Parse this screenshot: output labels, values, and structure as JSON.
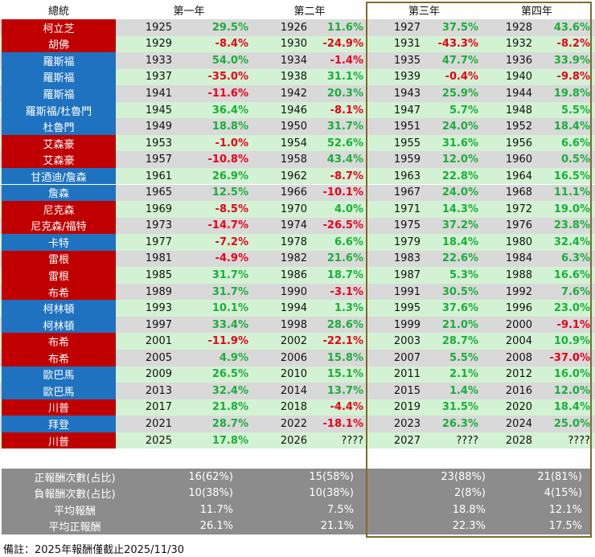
{
  "header": {
    "president": "總統",
    "year1": "第一年",
    "year2": "第二年",
    "year3": "第三年",
    "year4": "第四年"
  },
  "colors": {
    "republican": "#c00000",
    "democrat": "#1f72c0",
    "positive": "#1aaf3a",
    "negative": "#e8001c",
    "row_green": "#d3f2d3",
    "row_gray": "#d9d9d9",
    "summary_bg": "#8c8c8c",
    "frame": "#7f6a2e"
  },
  "rows": [
    {
      "president": "柯立芝",
      "party": "R",
      "bg": "gray",
      "y1": "1925",
      "r1": "29.5%",
      "y2": "1926",
      "r2": "11.6%",
      "y3": "1927",
      "r3": "37.5%",
      "y4": "1928",
      "r4": "43.6%"
    },
    {
      "president": "胡佛",
      "party": "R",
      "bg": "green",
      "y1": "1929",
      "r1": "-8.4%",
      "y2": "1930",
      "r2": "-24.9%",
      "y3": "1931",
      "r3": "-43.3%",
      "y4": "1932",
      "r4": "-8.2%"
    },
    {
      "president": "羅斯福",
      "party": "D",
      "bg": "gray",
      "y1": "1933",
      "r1": "54.0%",
      "y2": "1934",
      "r2": "-1.4%",
      "y3": "1935",
      "r3": "47.7%",
      "y4": "1936",
      "r4": "33.9%"
    },
    {
      "president": "羅斯福",
      "party": "D",
      "bg": "green",
      "y1": "1937",
      "r1": "-35.0%",
      "y2": "1938",
      "r2": "31.1%",
      "y3": "1939",
      "r3": "-0.4%",
      "y4": "1940",
      "r4": "-9.8%"
    },
    {
      "president": "羅斯福",
      "party": "D",
      "bg": "gray",
      "y1": "1941",
      "r1": "-11.6%",
      "y2": "1942",
      "r2": "20.3%",
      "y3": "1943",
      "r3": "25.9%",
      "y4": "1944",
      "r4": "19.8%"
    },
    {
      "president": "羅斯福/杜魯門",
      "party": "D",
      "bg": "green",
      "y1": "1945",
      "r1": "36.4%",
      "y2": "1946",
      "r2": "-8.1%",
      "y3": "1947",
      "r3": "5.7%",
      "y4": "1948",
      "r4": "5.5%"
    },
    {
      "president": "杜魯門",
      "party": "D",
      "bg": "gray",
      "y1": "1949",
      "r1": "18.8%",
      "y2": "1950",
      "r2": "31.7%",
      "y3": "1951",
      "r3": "24.0%",
      "y4": "1952",
      "r4": "18.4%"
    },
    {
      "president": "艾森豪",
      "party": "R",
      "bg": "green",
      "y1": "1953",
      "r1": "-1.0%",
      "y2": "1954",
      "r2": "52.6%",
      "y3": "1955",
      "r3": "31.6%",
      "y4": "1956",
      "r4": "6.6%"
    },
    {
      "president": "艾森豪",
      "party": "R",
      "bg": "gray",
      "y1": "1957",
      "r1": "-10.8%",
      "y2": "1958",
      "r2": "43.4%",
      "y3": "1959",
      "r3": "12.0%",
      "y4": "1960",
      "r4": "0.5%"
    },
    {
      "president": "甘迺迪/詹森",
      "party": "D",
      "bg": "green",
      "y1": "1961",
      "r1": "26.9%",
      "y2": "1962",
      "r2": "-8.7%",
      "y3": "1963",
      "r3": "22.8%",
      "y4": "1964",
      "r4": "16.5%"
    },
    {
      "president": "詹森",
      "party": "D",
      "bg": "gray",
      "y1": "1965",
      "r1": "12.5%",
      "y2": "1966",
      "r2": "-10.1%",
      "y3": "1967",
      "r3": "24.0%",
      "y4": "1968",
      "r4": "11.1%"
    },
    {
      "president": "尼克森",
      "party": "R",
      "bg": "green",
      "y1": "1969",
      "r1": "-8.5%",
      "y2": "1970",
      "r2": "4.0%",
      "y3": "1971",
      "r3": "14.3%",
      "y4": "1972",
      "r4": "19.0%"
    },
    {
      "president": "尼克森/福特",
      "party": "R",
      "bg": "gray",
      "y1": "1973",
      "r1": "-14.7%",
      "y2": "1974",
      "r2": "-26.5%",
      "y3": "1975",
      "r3": "37.2%",
      "y4": "1976",
      "r4": "23.8%"
    },
    {
      "president": "卡特",
      "party": "D",
      "bg": "green",
      "y1": "1977",
      "r1": "-7.2%",
      "y2": "1978",
      "r2": "6.6%",
      "y3": "1979",
      "r3": "18.4%",
      "y4": "1980",
      "r4": "32.4%"
    },
    {
      "president": "雷根",
      "party": "R",
      "bg": "gray",
      "y1": "1981",
      "r1": "-4.9%",
      "y2": "1982",
      "r2": "21.6%",
      "y3": "1983",
      "r3": "22.6%",
      "y4": "1984",
      "r4": "6.3%"
    },
    {
      "president": "雷根",
      "party": "R",
      "bg": "green",
      "y1": "1985",
      "r1": "31.7%",
      "y2": "1986",
      "r2": "18.7%",
      "y3": "1987",
      "r3": "5.3%",
      "y4": "1988",
      "r4": "16.6%"
    },
    {
      "president": "布希",
      "party": "R",
      "bg": "gray",
      "y1": "1989",
      "r1": "31.7%",
      "y2": "1990",
      "r2": "-3.1%",
      "y3": "1991",
      "r3": "30.5%",
      "y4": "1992",
      "r4": "7.6%"
    },
    {
      "president": "柯林頓",
      "party": "D",
      "bg": "green",
      "y1": "1993",
      "r1": "10.1%",
      "y2": "1994",
      "r2": "1.3%",
      "y3": "1995",
      "r3": "37.6%",
      "y4": "1996",
      "r4": "23.0%"
    },
    {
      "president": "柯林頓",
      "party": "D",
      "bg": "gray",
      "y1": "1997",
      "r1": "33.4%",
      "y2": "1998",
      "r2": "28.6%",
      "y3": "1999",
      "r3": "21.0%",
      "y4": "2000",
      "r4": "-9.1%"
    },
    {
      "president": "布希",
      "party": "R",
      "bg": "green",
      "y1": "2001",
      "r1": "-11.9%",
      "y2": "2002",
      "r2": "-22.1%",
      "y3": "2003",
      "r3": "28.7%",
      "y4": "2004",
      "r4": "10.9%"
    },
    {
      "president": "布希",
      "party": "R",
      "bg": "gray",
      "y1": "2005",
      "r1": "4.9%",
      "y2": "2006",
      "r2": "15.8%",
      "y3": "2007",
      "r3": "5.5%",
      "y4": "2008",
      "r4": "-37.0%"
    },
    {
      "president": "歐巴馬",
      "party": "D",
      "bg": "green",
      "y1": "2009",
      "r1": "26.5%",
      "y2": "2010",
      "r2": "15.1%",
      "y3": "2011",
      "r3": "2.1%",
      "y4": "2012",
      "r4": "16.0%"
    },
    {
      "president": "歐巴馬",
      "party": "D",
      "bg": "gray",
      "y1": "2013",
      "r1": "32.4%",
      "y2": "2014",
      "r2": "13.7%",
      "y3": "2015",
      "r3": "1.4%",
      "y4": "2016",
      "r4": "12.0%"
    },
    {
      "president": "川普",
      "party": "R",
      "bg": "green",
      "y1": "2017",
      "r1": "21.8%",
      "y2": "2018",
      "r2": "-4.4%",
      "y3": "2019",
      "r3": "31.5%",
      "y4": "2020",
      "r4": "18.4%"
    },
    {
      "president": "拜登",
      "party": "D",
      "bg": "gray",
      "y1": "2021",
      "r1": "28.7%",
      "y2": "2022",
      "r2": "-18.1%",
      "y3": "2023",
      "r3": "26.3%",
      "y4": "2024",
      "r4": "25.0%"
    },
    {
      "president": "川普",
      "party": "R",
      "bg": "green",
      "y1": "2025",
      "r1": "17.8%",
      "y2": "2026",
      "r2": "????",
      "y3": "2027",
      "r3": "????",
      "y4": "2028",
      "r4": "????"
    }
  ],
  "summary": [
    {
      "label": "正報酬次數(占比)",
      "v1": "16(62%)",
      "v2": "15(58%)",
      "v3": "23(88%)",
      "v4": "21(81%)"
    },
    {
      "label": "負報酬次數(占比)",
      "v1": "10(38%)",
      "v2": "10(38%)",
      "v3": "2(8%)",
      "v4": "4(15%)"
    },
    {
      "label": "平均報酬",
      "v1": "11.7%",
      "v2": "7.5%",
      "v3": "18.8%",
      "v4": "12.1%"
    },
    {
      "label": "平均正報酬",
      "v1": "26.1%",
      "v2": "21.1%",
      "v3": "22.3%",
      "v4": "17.5%"
    }
  ],
  "note": "備註：2025年報酬僅截止2025/11/30"
}
